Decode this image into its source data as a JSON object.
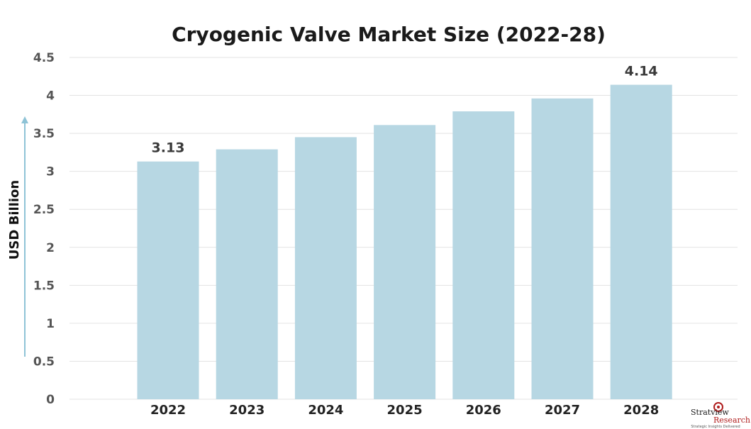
{
  "chart_data": {
    "type": "bar",
    "title": "Cryogenic Valve Market Size (2022-28)",
    "xlabel": "",
    "ylabel": "USD Billion",
    "ylim": [
      0,
      4.5
    ],
    "yticks": [
      "0",
      "0.5",
      "1",
      "1.5",
      "2",
      "2.5",
      "3",
      "3.5",
      "4",
      "4.5"
    ],
    "categories": [
      "2022",
      "2023",
      "2024",
      "2025",
      "2026",
      "2027",
      "2028"
    ],
    "values": [
      3.13,
      3.29,
      3.45,
      3.61,
      3.79,
      3.96,
      4.14
    ],
    "data_labels": [
      "3.13",
      "",
      "",
      "",
      "",
      "",
      "4.14"
    ],
    "grid": true,
    "colors": {
      "bar": "#b7d7e3",
      "grid": "#e3e3e3",
      "axis_arrow": "#8ec3d6"
    }
  },
  "watermark": {
    "name": "Stratview",
    "sub": "Research",
    "tagline": "Strategic Insights Delivered"
  }
}
